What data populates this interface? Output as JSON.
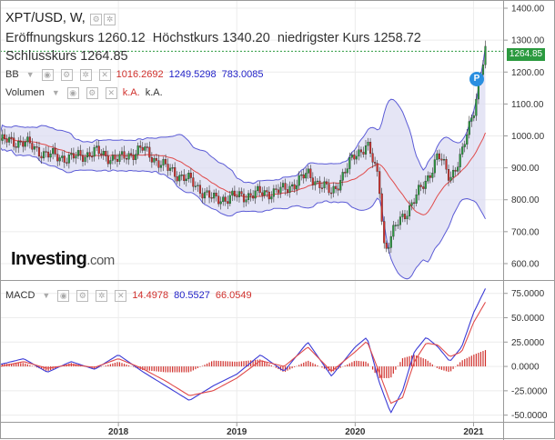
{
  "header": {
    "symbol": "XPT/USD, W,",
    "open_label": "Eröffnungskurs",
    "open": "1260.12",
    "high_label": "Höchstkurs",
    "high": "1340.20",
    "low_label": "niedrigster Kurs",
    "low": "1258.72",
    "close_label": "Schlusskurs",
    "close": "1264.85"
  },
  "indicators": {
    "bb": {
      "label": "BB",
      "v1": "1016.2692",
      "v2": "1249.5298",
      "v3": "783.0085"
    },
    "volume": {
      "label": "Volumen",
      "v1": "k.A.",
      "v2": "k.A."
    },
    "macd": {
      "label": "MACD",
      "v1": "14.4978",
      "v2": "80.5527",
      "v3": "66.0549"
    }
  },
  "logo": {
    "name": "Investing",
    "suffix": ".com"
  },
  "price_tag": "1264.85",
  "badge": "P",
  "colors": {
    "up": "#2b9a3f",
    "down": "#d0312d",
    "bb_fill": "#dcdcf2",
    "bb_band": "#5b5bd6",
    "bb_mid": "#e04b4b",
    "macd": "#3b3bd6",
    "signal": "#e04b4b"
  },
  "chart_data": [
    {
      "type": "line",
      "panel": "price",
      "x": [
        2017.0,
        2017.2,
        2017.4,
        2017.6,
        2017.8,
        2018.0,
        2018.2,
        2018.4,
        2018.6,
        2018.8,
        2019.0,
        2019.2,
        2019.4,
        2019.6,
        2019.8,
        2020.0,
        2020.1,
        2020.2,
        2020.25,
        2020.35,
        2020.5,
        2020.6,
        2020.7,
        2020.8,
        2020.9,
        2021.0,
        2021.05,
        2021.1
      ],
      "series": [
        {
          "name": "close",
          "values": [
            985,
            980,
            940,
            930,
            950,
            925,
            960,
            900,
            860,
            800,
            810,
            820,
            830,
            880,
            820,
            940,
            975,
            860,
            640,
            720,
            800,
            860,
            940,
            870,
            940,
            1080,
            1180,
            1265
          ]
        }
      ],
      "yticks": [
        600,
        700,
        800,
        900,
        1000,
        1100,
        1200,
        1300,
        1400
      ],
      "yticklabels": [
        "600.00",
        "700.00",
        "800.00",
        "900.00",
        "1000.00",
        "1100.00",
        "1200.00",
        "1300.00",
        "1400.00"
      ],
      "ylim": [
        560,
        1420
      ]
    },
    {
      "type": "line",
      "panel": "macd",
      "x": [
        2017.0,
        2017.2,
        2017.4,
        2017.6,
        2017.8,
        2018.0,
        2018.2,
        2018.4,
        2018.6,
        2018.8,
        2019.0,
        2019.2,
        2019.4,
        2019.6,
        2019.8,
        2020.0,
        2020.1,
        2020.2,
        2020.3,
        2020.4,
        2020.5,
        2020.6,
        2020.7,
        2020.8,
        2020.9,
        2021.0,
        2021.1
      ],
      "series": [
        {
          "name": "MACD",
          "values": [
            2,
            8,
            -6,
            5,
            -3,
            12,
            -5,
            -20,
            -35,
            -20,
            -8,
            12,
            -5,
            25,
            -10,
            20,
            30,
            -15,
            -48,
            -25,
            15,
            30,
            20,
            5,
            20,
            55,
            80
          ]
        },
        {
          "name": "Signal",
          "values": [
            0,
            5,
            -2,
            2,
            -1,
            8,
            -2,
            -15,
            -30,
            -25,
            -12,
            6,
            0,
            20,
            -5,
            15,
            26,
            -5,
            -38,
            -32,
            5,
            24,
            22,
            10,
            15,
            45,
            66
          ]
        }
      ],
      "yticks": [
        -50,
        -25,
        0,
        25,
        50,
        75
      ],
      "yticklabels": [
        "-50.0000",
        "-25.0000",
        "0.0000",
        "25.0000",
        "50.0000",
        "75.0000"
      ],
      "ylim": [
        -55,
        85
      ]
    }
  ],
  "xaxis": {
    "ticks": [
      2018,
      2019,
      2020,
      2021
    ],
    "labels": [
      "2018",
      "2019",
      "2020",
      "2021"
    ],
    "xlim": [
      2017.0,
      2021.25
    ]
  }
}
